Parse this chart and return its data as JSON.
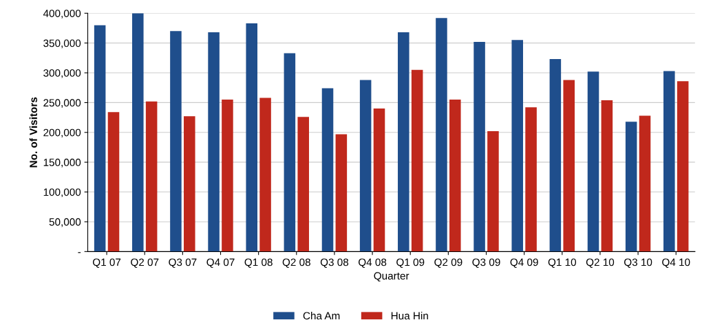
{
  "chart_data": {
    "type": "bar",
    "xlabel": "Quarter",
    "ylabel": "No. of Visitors",
    "categories": [
      "Q1 07",
      "Q2 07",
      "Q3 07",
      "Q4 07",
      "Q1 08",
      "Q2 08",
      "Q3 08",
      "Q4 08",
      "Q1 09",
      "Q2 09",
      "Q3 09",
      "Q4 09",
      "Q1 10",
      "Q2 10",
      "Q3 10",
      "Q4 10"
    ],
    "series": [
      {
        "name": "Cha Am",
        "color": "#1f4e8c",
        "values": [
          380000,
          400000,
          370000,
          368000,
          383000,
          333000,
          274000,
          288000,
          368000,
          392000,
          352000,
          355000,
          323000,
          302000,
          218000,
          303000
        ]
      },
      {
        "name": "Hua Hin",
        "color": "#c0281c",
        "values": [
          234000,
          252000,
          227000,
          255000,
          258000,
          226000,
          197000,
          240000,
          305000,
          255000,
          202000,
          242000,
          288000,
          254000,
          228000,
          286000
        ]
      }
    ],
    "ylim": [
      0,
      400000
    ],
    "yticks": [
      {
        "value": 0,
        "label": "-"
      },
      {
        "value": 50000,
        "label": "50,000"
      },
      {
        "value": 100000,
        "label": "100,000"
      },
      {
        "value": 150000,
        "label": "150,000"
      },
      {
        "value": 200000,
        "label": "200,000"
      },
      {
        "value": 250000,
        "label": "250,000"
      },
      {
        "value": 300000,
        "label": "300,000"
      },
      {
        "value": 350000,
        "label": "350,000"
      },
      {
        "value": 400000,
        "label": "400,000"
      }
    ],
    "grid": "y",
    "legend": "bottom"
  }
}
